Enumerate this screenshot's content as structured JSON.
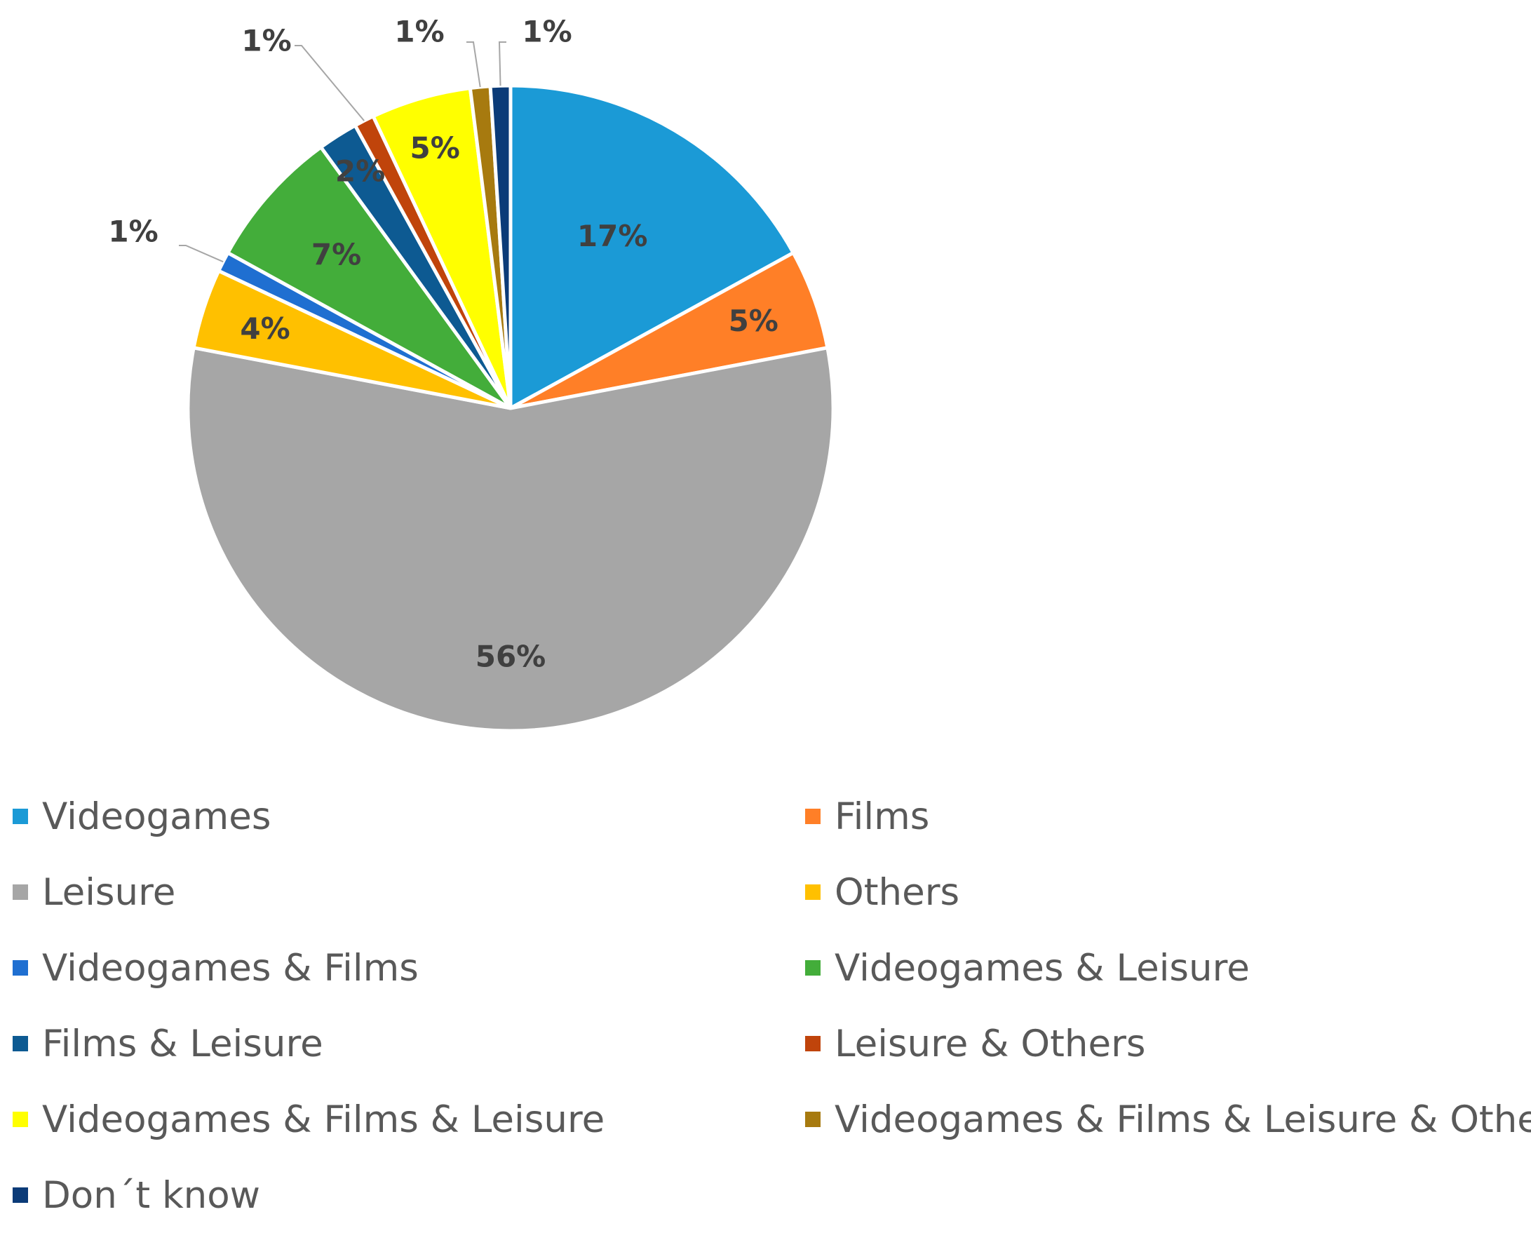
{
  "chart_data": {
    "type": "pie",
    "title": "",
    "slices": [
      {
        "label": "Videogames",
        "value": 17,
        "data_label": "17%",
        "color": "#1B9AD6"
      },
      {
        "label": "Films",
        "value": 5,
        "data_label": "5%",
        "color": "#FF7F27"
      },
      {
        "label": "Leisure",
        "value": 56,
        "data_label": "56%",
        "color": "#A6A6A6"
      },
      {
        "label": "Others",
        "value": 4,
        "data_label": "4%",
        "color": "#FFC000"
      },
      {
        "label": "Videogames & Films",
        "value": 1,
        "data_label": "1%",
        "color": "#1F6FD1"
      },
      {
        "label": "Videogames & Leisure",
        "value": 7,
        "data_label": "7%",
        "color": "#43AD3A"
      },
      {
        "label": "Films & Leisure",
        "value": 2,
        "data_label": "2%",
        "color": "#0D5A92"
      },
      {
        "label": "Leisure & Others",
        "value": 1,
        "data_label": "1%",
        "color": "#C0440B"
      },
      {
        "label": "Videogames & Films & Leisure",
        "value": 5,
        "data_label": "5%",
        "color": "#FFFF00"
      },
      {
        "label": "Videogames & Films & Leisure & Others",
        "value": 1,
        "data_label": "1%",
        "color": "#A77A0F"
      },
      {
        "label": "Don´t know",
        "value": 1,
        "data_label": "1%",
        "color": "#0B3B78"
      }
    ],
    "legend_position": "bottom"
  }
}
